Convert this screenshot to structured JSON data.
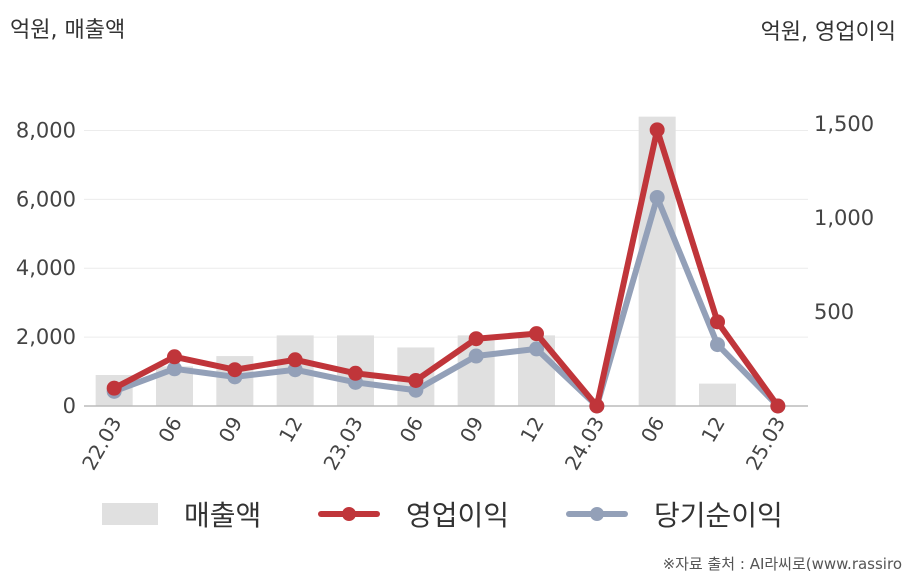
{
  "units": {
    "left": "억원, 매출액",
    "right": "억원, 영업이익"
  },
  "legend": {
    "revenue": "매출액",
    "operating_profit": "영업이익",
    "net_income": "당기순이익"
  },
  "source": "※자료 출처 : AI라씨로(www.rassiro",
  "colors": {
    "bars": "#e0e0e0",
    "operating_profit": "#c0353a",
    "net_income": "#93a0b8",
    "grid": "#ececec",
    "axis": "#bbbbbb"
  },
  "chart_data": {
    "type": "bar+line",
    "categories": [
      "22.03",
      "06",
      "09",
      "12",
      "23.03",
      "06",
      "09",
      "12",
      "24.03",
      "06",
      "12",
      "25.03"
    ],
    "left_axis": {
      "ticks": [
        "0",
        "2,000",
        "4,000",
        "6,000",
        "8,000"
      ],
      "ylim": [
        0,
        9000
      ]
    },
    "right_axis": {
      "ticks": [
        "500",
        "1,000",
        "1,500"
      ],
      "ylim": [
        0,
        1650
      ]
    },
    "series": [
      {
        "name": "매출액",
        "type": "bar",
        "axis": "left",
        "values": [
          900,
          1150,
          1450,
          2050,
          2050,
          1700,
          2050,
          2050,
          0,
          8400,
          650,
          0
        ]
      },
      {
        "name": "영업이익",
        "type": "line",
        "axis": "right",
        "values": [
          95,
          262,
          193,
          246,
          174,
          136,
          358,
          385,
          0,
          1470,
          448,
          0
        ]
      },
      {
        "name": "당기순이익",
        "type": "line",
        "axis": "right",
        "values": [
          78,
          198,
          155,
          193,
          126,
          84,
          266,
          304,
          0,
          1110,
          327,
          0
        ]
      }
    ]
  }
}
